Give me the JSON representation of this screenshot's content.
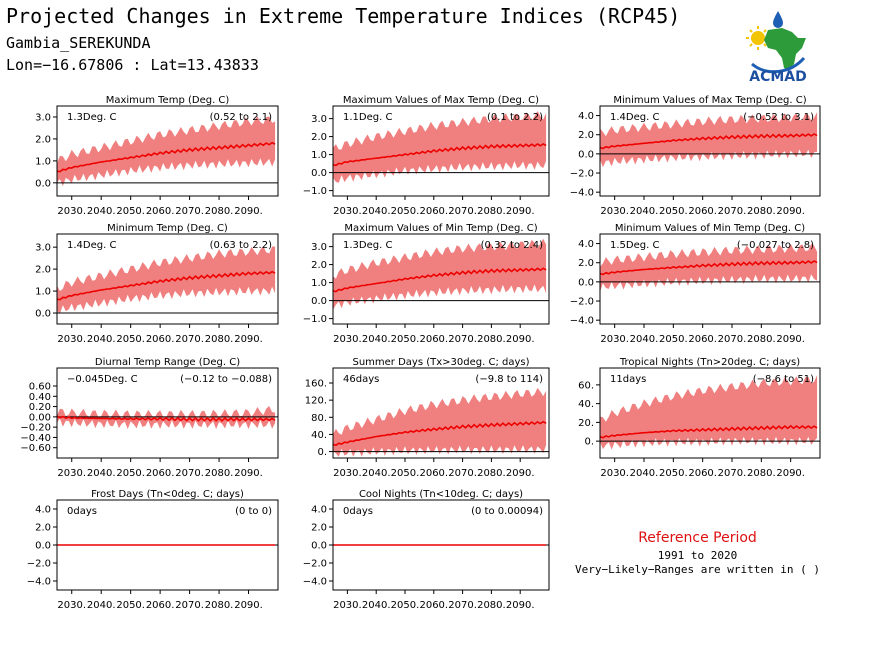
{
  "header": {
    "title": "Projected Changes in Extreme Temperature Indices (RCP45)",
    "location": "Gambia_SEREKUNDA",
    "coords": "Lon=−16.67806 : Lat=13.43833"
  },
  "logo": {
    "text": "ACMAD"
  },
  "reference": {
    "title": "Reference Period",
    "years": "1991 to 2020",
    "note": "Very−Likely−Ranges are written in ( )"
  },
  "colors": {
    "band": "#f08080",
    "line": "#ee0000",
    "zero": "#000000"
  },
  "chart_data": [
    {
      "type": "area",
      "title": "Maximum Temp (Deg. C)",
      "value_label": "1.3Deg. C",
      "range_label": "(0.52 to 2.1)",
      "xlim": [
        2025,
        2100
      ],
      "ylim": [
        -0.6,
        3.5
      ],
      "yticks": [
        0,
        1,
        2,
        3
      ],
      "ytick_labels": [
        "0.0",
        "1.0",
        "2.0",
        "3.0"
      ],
      "xtick_labels": [
        "2030.",
        "2040.",
        "2050.",
        "2060.",
        "2070.",
        "2080.",
        "2090."
      ],
      "years": [
        2025,
        2030,
        2040,
        2050,
        2060,
        2070,
        2080,
        2090,
        2099
      ],
      "median": [
        0.5,
        0.7,
        0.95,
        1.15,
        1.35,
        1.5,
        1.6,
        1.7,
        1.8
      ],
      "low": [
        0.0,
        0.15,
        0.35,
        0.55,
        0.7,
        0.8,
        0.85,
        0.9,
        0.95
      ],
      "high": [
        1.0,
        1.3,
        1.6,
        1.9,
        2.2,
        2.4,
        2.6,
        2.8,
        2.9
      ]
    },
    {
      "type": "area",
      "title": "Maximum Values of Max Temp (Deg. C)",
      "value_label": "1.1Deg. C",
      "range_label": "(0.1 to 2.2)",
      "xlim": [
        2025,
        2100
      ],
      "ylim": [
        -1.3,
        3.7
      ],
      "yticks": [
        -1,
        0,
        1,
        2,
        3
      ],
      "ytick_labels": [
        "−1.0",
        "0.0",
        "1.0",
        "2.0",
        "3.0"
      ],
      "xtick_labels": [
        "2030.",
        "2040.",
        "2050.",
        "2060.",
        "2070.",
        "2080.",
        "2090."
      ],
      "years": [
        2025,
        2030,
        2040,
        2050,
        2060,
        2070,
        2080,
        2090,
        2099
      ],
      "median": [
        0.4,
        0.6,
        0.8,
        1.0,
        1.2,
        1.35,
        1.45,
        1.5,
        1.55
      ],
      "low": [
        -0.5,
        -0.3,
        -0.1,
        0.1,
        0.2,
        0.3,
        0.35,
        0.4,
        0.4
      ],
      "high": [
        1.3,
        1.6,
        2.0,
        2.3,
        2.6,
        2.8,
        3.0,
        3.1,
        3.2
      ]
    },
    {
      "type": "area",
      "title": "Minimum Values of Max Temp (Deg. C)",
      "value_label": "1.4Deg. C",
      "range_label": "(−0.52 to 3.1)",
      "xlim": [
        2025,
        2100
      ],
      "ylim": [
        -4.4,
        5.0
      ],
      "yticks": [
        -4,
        -2,
        0,
        2,
        4
      ],
      "ytick_labels": [
        "−4.0",
        "−2.0",
        "0.0",
        "2.0",
        "4.0"
      ],
      "xtick_labels": [
        "2030.",
        "2040.",
        "2050.",
        "2060.",
        "2070.",
        "2080.",
        "2090."
      ],
      "years": [
        2025,
        2030,
        2040,
        2050,
        2060,
        2070,
        2080,
        2090,
        2099
      ],
      "median": [
        0.6,
        0.8,
        1.1,
        1.4,
        1.6,
        1.75,
        1.85,
        1.9,
        2.0
      ],
      "low": [
        -1.0,
        -0.8,
        -0.6,
        -0.4,
        -0.3,
        -0.2,
        -0.1,
        0.0,
        0.0
      ],
      "high": [
        2.2,
        2.5,
        2.8,
        3.1,
        3.4,
        3.6,
        3.7,
        3.8,
        3.9
      ]
    },
    {
      "type": "area",
      "title": "Minimum Temp (Deg. C)",
      "value_label": "1.4Deg. C",
      "range_label": "(0.63 to 2.2)",
      "xlim": [
        2025,
        2100
      ],
      "ylim": [
        -0.5,
        3.6
      ],
      "yticks": [
        0,
        1,
        2,
        3
      ],
      "ytick_labels": [
        "0.0",
        "1.0",
        "2.0",
        "3.0"
      ],
      "xtick_labels": [
        "2030.",
        "2040.",
        "2050.",
        "2060.",
        "2070.",
        "2080.",
        "2090."
      ],
      "years": [
        2025,
        2030,
        2040,
        2050,
        2060,
        2070,
        2080,
        2090,
        2099
      ],
      "median": [
        0.6,
        0.8,
        1.05,
        1.25,
        1.45,
        1.6,
        1.7,
        1.8,
        1.85
      ],
      "low": [
        0.1,
        0.25,
        0.45,
        0.65,
        0.8,
        0.9,
        0.95,
        1.0,
        1.0
      ],
      "high": [
        1.1,
        1.4,
        1.7,
        2.0,
        2.3,
        2.5,
        2.7,
        2.8,
        2.9
      ]
    },
    {
      "type": "area",
      "title": "Maximum Values of Min Temp (Deg. C)",
      "value_label": "1.3Deg. C",
      "range_label": "(0.32 to 2.4)",
      "xlim": [
        2025,
        2100
      ],
      "ylim": [
        -1.3,
        3.7
      ],
      "yticks": [
        -1,
        0,
        1,
        2,
        3
      ],
      "ytick_labels": [
        "−1.0",
        "0.0",
        "1.0",
        "2.0",
        "3.0"
      ],
      "xtick_labels": [
        "2030.",
        "2040.",
        "2050.",
        "2060.",
        "2070.",
        "2080.",
        "2090."
      ],
      "years": [
        2025,
        2030,
        2040,
        2050,
        2060,
        2070,
        2080,
        2090,
        2099
      ],
      "median": [
        0.5,
        0.7,
        0.95,
        1.2,
        1.4,
        1.55,
        1.65,
        1.7,
        1.75
      ],
      "low": [
        -0.3,
        -0.1,
        0.1,
        0.3,
        0.45,
        0.55,
        0.6,
        0.65,
        0.65
      ],
      "high": [
        1.4,
        1.7,
        2.1,
        2.4,
        2.7,
        2.9,
        3.0,
        3.1,
        3.2
      ]
    },
    {
      "type": "area",
      "title": "Minimum Values of Min Temp (Deg. C)",
      "value_label": "1.5Deg. C",
      "range_label": "(−0.027 to 2.8)",
      "xlim": [
        2025,
        2100
      ],
      "ylim": [
        -4.4,
        5.0
      ],
      "yticks": [
        -4,
        -2,
        0,
        2,
        4
      ],
      "ytick_labels": [
        "−4.0",
        "−2.0",
        "0.0",
        "2.0",
        "4.0"
      ],
      "xtick_labels": [
        "2030.",
        "2040.",
        "2050.",
        "2060.",
        "2070.",
        "2080.",
        "2090."
      ],
      "years": [
        2025,
        2030,
        2040,
        2050,
        2060,
        2070,
        2080,
        2090,
        2099
      ],
      "median": [
        0.8,
        1.0,
        1.3,
        1.5,
        1.7,
        1.85,
        1.95,
        2.0,
        2.1
      ],
      "low": [
        -0.6,
        -0.4,
        -0.2,
        0.0,
        0.1,
        0.2,
        0.3,
        0.3,
        0.4
      ],
      "high": [
        2.0,
        2.3,
        2.6,
        2.9,
        3.1,
        3.3,
        3.4,
        3.5,
        3.6
      ]
    },
    {
      "type": "area",
      "title": "Diurnal Temp Range (Deg. C)",
      "value_label": "−0.045Deg. C",
      "range_label": "(−0.12 to −0.088)",
      "xlim": [
        2025,
        2100
      ],
      "ylim": [
        -0.8,
        0.95
      ],
      "yticks": [
        -0.6,
        -0.4,
        -0.2,
        0,
        0.2,
        0.4,
        0.6
      ],
      "ytick_labels": [
        "−0.60",
        "−0.40",
        "−0.20",
        "0.00",
        "0.20",
        "0.40",
        "0.60"
      ],
      "xtick_labels": [
        "2030.",
        "2040.",
        "2050.",
        "2060.",
        "2070.",
        "2080.",
        "2090."
      ],
      "years": [
        2025,
        2030,
        2040,
        2050,
        2060,
        2070,
        2080,
        2090,
        2099
      ],
      "median": [
        0.0,
        -0.02,
        -0.03,
        -0.04,
        -0.04,
        -0.05,
        -0.05,
        -0.05,
        -0.05
      ],
      "low": [
        -0.1,
        -0.12,
        -0.14,
        -0.15,
        -0.15,
        -0.15,
        -0.15,
        -0.15,
        -0.15
      ],
      "high": [
        0.1,
        0.08,
        0.06,
        0.05,
        0.05,
        0.05,
        0.06,
        0.08,
        0.15
      ]
    },
    {
      "type": "area",
      "title": "Summer Days (Tx>30deg. C; days)",
      "value_label": "46days",
      "range_label": "(−9.8 to 114)",
      "xlim": [
        2025,
        2100
      ],
      "ylim": [
        -15,
        195
      ],
      "yticks": [
        0,
        40,
        80,
        120,
        160
      ],
      "ytick_labels": [
        "0.",
        "40.",
        "80.",
        "120.",
        "160."
      ],
      "xtick_labels": [
        "2030.",
        "2040.",
        "2050.",
        "2060.",
        "2070.",
        "2080.",
        "2090."
      ],
      "years": [
        2025,
        2030,
        2040,
        2050,
        2060,
        2070,
        2080,
        2090,
        2099
      ],
      "median": [
        15,
        22,
        35,
        45,
        52,
        58,
        62,
        65,
        68
      ],
      "low": [
        -5,
        -3,
        0,
        2,
        3,
        4,
        4,
        5,
        5
      ],
      "high": [
        40,
        55,
        75,
        95,
        110,
        120,
        128,
        135,
        140
      ]
    },
    {
      "type": "area",
      "title": "Tropical Nights (Tn>20deg. C; days)",
      "value_label": "11days",
      "range_label": "(−8.6 to 51)",
      "xlim": [
        2025,
        2100
      ],
      "ylim": [
        -18,
        78
      ],
      "yticks": [
        0,
        20,
        40,
        60
      ],
      "ytick_labels": [
        "0.",
        "20.",
        "40.",
        "60."
      ],
      "xtick_labels": [
        "2030.",
        "2040.",
        "2050.",
        "2060.",
        "2070.",
        "2080.",
        "2090."
      ],
      "years": [
        2025,
        2030,
        2040,
        2050,
        2060,
        2070,
        2080,
        2090,
        2099
      ],
      "median": [
        4,
        6,
        9,
        11,
        12,
        13,
        14,
        15,
        15
      ],
      "low": [
        -5,
        -4,
        -2,
        -1,
        -1,
        0,
        0,
        0,
        0
      ],
      "high": [
        22,
        30,
        40,
        48,
        54,
        58,
        62,
        64,
        66
      ]
    },
    {
      "type": "area",
      "title": "Frost Days (Tn<0deg. C; days)",
      "value_label": "0days",
      "range_label": "(0 to 0)",
      "xlim": [
        2025,
        2100
      ],
      "ylim": [
        -5,
        5
      ],
      "yticks": [
        -4,
        -2,
        0,
        2,
        4
      ],
      "ytick_labels": [
        "−4.0",
        "−2.0",
        "0.0",
        "2.0",
        "4.0"
      ],
      "xtick_labels": [
        "2030.",
        "2040.",
        "2050.",
        "2060.",
        "2070.",
        "2080.",
        "2090."
      ],
      "years": [
        2025,
        2099
      ],
      "median": [
        0,
        0
      ],
      "low": [
        0,
        0
      ],
      "high": [
        0,
        0
      ]
    },
    {
      "type": "area",
      "title": "Cool Nights (Tn<10deg. C; days)",
      "value_label": "0days",
      "range_label": "(0 to 0.00094)",
      "xlim": [
        2025,
        2100
      ],
      "ylim": [
        -5,
        5
      ],
      "yticks": [
        -4,
        -2,
        0,
        2,
        4
      ],
      "ytick_labels": [
        "−4.0",
        "−2.0",
        "0.0",
        "2.0",
        "4.0"
      ],
      "xtick_labels": [
        "2030.",
        "2040.",
        "2050.",
        "2060.",
        "2070.",
        "2080.",
        "2090."
      ],
      "years": [
        2025,
        2099
      ],
      "median": [
        0,
        0
      ],
      "low": [
        0,
        0
      ],
      "high": [
        0,
        0
      ]
    }
  ]
}
